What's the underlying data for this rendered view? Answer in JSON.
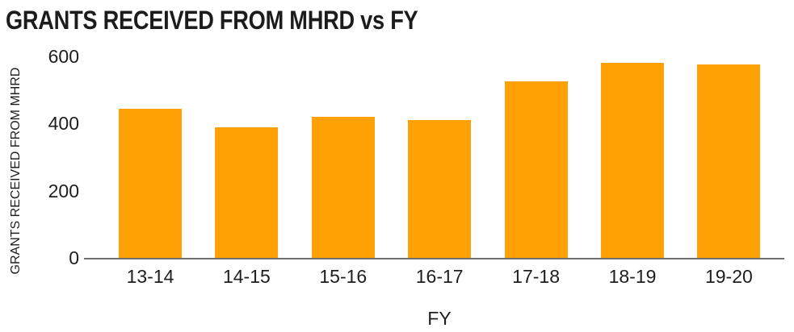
{
  "title": "GRANTS RECEIVED FROM MHRD vs FY",
  "colors": {
    "bar": "#FFA004",
    "axis_line": "#6E6E6E",
    "text": "#1E1E1E",
    "background": "#FFFFFF"
  },
  "chart_data": {
    "type": "bar",
    "title": "GRANTS RECEIVED FROM MHRD vs FY",
    "xlabel": "FY",
    "ylabel": "GRANTS RECEIVED FROM MHRD",
    "categories": [
      "13-14",
      "14-15",
      "15-16",
      "16-17",
      "17-18",
      "18-19",
      "19-20"
    ],
    "values": [
      445,
      390,
      420,
      410,
      525,
      580,
      575
    ],
    "yticks": [
      0,
      200,
      400,
      600
    ],
    "ylim": [
      0,
      600
    ],
    "grid": false,
    "legend": "none",
    "bar_color": "#FFA004"
  }
}
